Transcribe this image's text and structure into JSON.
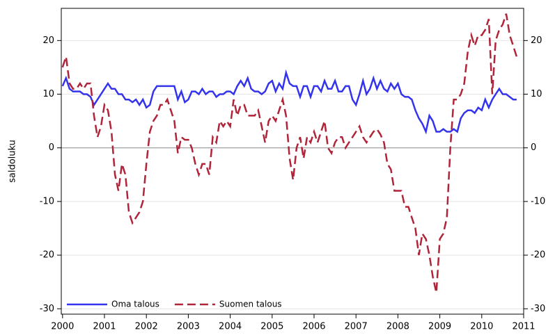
{
  "chart_data": {
    "type": "line",
    "y_label": "saldoluku",
    "xlim": [
      1999.97,
      2011
    ],
    "xticks": [
      2000,
      2001,
      2002,
      2003,
      2004,
      2005,
      2006,
      2007,
      2008,
      2009,
      2010,
      2011
    ],
    "ylim": [
      -31,
      26
    ],
    "yticks": [
      -30,
      -20,
      -10,
      0,
      10,
      20
    ],
    "y2lim": [
      -31,
      26
    ],
    "y2ticks": [
      -30,
      -20,
      -10,
      0,
      10,
      20
    ],
    "grid": true,
    "legend": "lower left",
    "x": [
      2000,
      2000.083,
      2000.167,
      2000.25,
      2000.333,
      2000.417,
      2000.5,
      2000.583,
      2000.667,
      2000.75,
      2000.833,
      2000.917,
      2001,
      2001.083,
      2001.167,
      2001.25,
      2001.333,
      2001.417,
      2001.5,
      2001.583,
      2001.667,
      2001.75,
      2001.833,
      2001.917,
      2002,
      2002.083,
      2002.167,
      2002.25,
      2002.333,
      2002.417,
      2002.5,
      2002.583,
      2002.667,
      2002.75,
      2002.833,
      2002.917,
      2003,
      2003.083,
      2003.167,
      2003.25,
      2003.333,
      2003.417,
      2003.5,
      2003.583,
      2003.667,
      2003.75,
      2003.833,
      2003.917,
      2004,
      2004.083,
      2004.167,
      2004.25,
      2004.333,
      2004.417,
      2004.5,
      2004.583,
      2004.667,
      2004.75,
      2004.833,
      2004.917,
      2005,
      2005.083,
      2005.167,
      2005.25,
      2005.333,
      2005.417,
      2005.5,
      2005.583,
      2005.667,
      2005.75,
      2005.833,
      2005.917,
      2006,
      2006.083,
      2006.167,
      2006.25,
      2006.333,
      2006.417,
      2006.5,
      2006.583,
      2006.667,
      2006.75,
      2006.833,
      2006.917,
      2007,
      2007.083,
      2007.167,
      2007.25,
      2007.333,
      2007.417,
      2007.5,
      2007.583,
      2007.667,
      2007.75,
      2007.833,
      2007.917,
      2008,
      2008.083,
      2008.167,
      2008.25,
      2008.333,
      2008.417,
      2008.5,
      2008.583,
      2008.667,
      2008.75,
      2008.833,
      2008.917,
      2009,
      2009.083,
      2009.167,
      2009.25,
      2009.333,
      2009.417,
      2009.5,
      2009.583,
      2009.667,
      2009.75,
      2009.833,
      2009.917,
      2010,
      2010.083,
      2010.167,
      2010.25,
      2010.333,
      2010.417,
      2010.5,
      2010.583,
      2010.667,
      2010.75,
      2010.833
    ],
    "series": [
      {
        "name": "Oma talous",
        "color": "#3333ee",
        "dash": false,
        "values": [
          11.5,
          13,
          11,
          10.5,
          10.5,
          10.5,
          10,
          10,
          9.5,
          8,
          9,
          10,
          11,
          12,
          11,
          11,
          10,
          10,
          9,
          9,
          8.5,
          9,
          8,
          9,
          7.5,
          8,
          10.5,
          11.5,
          11.5,
          11.5,
          11.5,
          11.5,
          11.5,
          9,
          10.5,
          8.5,
          9,
          10.5,
          10.5,
          10,
          11,
          10,
          10.5,
          10.5,
          9.5,
          10,
          10,
          10.5,
          10.5,
          10,
          11.5,
          12.5,
          11.5,
          13,
          11,
          10.5,
          10.5,
          10,
          10.5,
          12,
          12.5,
          10.5,
          12,
          11,
          14,
          12,
          11.5,
          11.5,
          9.5,
          11.5,
          11.5,
          9.5,
          11.5,
          11.5,
          10.5,
          12.5,
          11,
          11,
          12.5,
          10.5,
          10.5,
          11.5,
          11.5,
          9,
          8,
          10,
          12.5,
          10,
          11,
          13,
          11,
          12.5,
          11,
          10.5,
          12,
          11,
          12,
          10,
          9.5,
          9.5,
          9,
          7,
          5.5,
          4.5,
          3,
          6,
          5,
          3,
          3,
          3.5,
          3,
          3,
          3.5,
          3,
          5.5,
          6.5,
          7,
          7,
          6.5,
          7.5,
          7,
          9,
          7.5,
          9,
          10,
          11,
          10,
          10,
          9.5,
          9,
          9
        ]
      },
      {
        "name": "Suomen talous",
        "color": "#b0243a",
        "dash": true,
        "values": [
          15,
          17,
          12,
          11,
          11,
          12,
          11,
          12,
          12,
          6,
          2,
          4,
          8,
          7,
          3,
          -5,
          -8,
          -3,
          -5,
          -12,
          -14,
          -13,
          -12,
          -10,
          -3,
          3,
          5,
          6,
          8,
          8,
          9,
          7,
          5,
          -1,
          2,
          1.5,
          1.5,
          0,
          -3,
          -5,
          -3,
          -3,
          -5,
          2,
          1,
          5,
          4,
          5,
          4,
          9,
          6,
          8,
          8,
          6,
          6,
          6,
          7,
          4,
          1,
          5,
          6,
          5,
          7,
          9,
          6,
          -2,
          -6,
          0,
          2,
          -2,
          2,
          1,
          3,
          1,
          3,
          5,
          0,
          -1,
          1,
          2,
          2,
          0,
          1,
          2,
          3,
          4,
          2,
          1,
          2,
          3,
          3.5,
          2.5,
          1,
          -3,
          -4,
          -8,
          -8,
          -8,
          -11,
          -11,
          -13,
          -15,
          -20,
          -16,
          -17,
          -20,
          -24,
          -27,
          -17,
          -16,
          -13,
          0,
          9,
          9,
          10,
          12,
          18,
          21,
          19,
          21,
          21,
          22,
          24,
          10,
          20,
          22,
          23,
          25,
          21,
          19,
          17
        ]
      }
    ]
  }
}
